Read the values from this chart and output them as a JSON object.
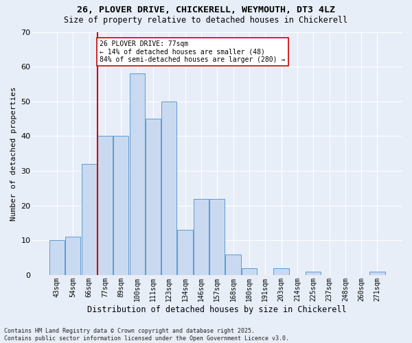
{
  "title1": "26, PLOVER DRIVE, CHICKERELL, WEYMOUTH, DT3 4LZ",
  "title2": "Size of property relative to detached houses in Chickerell",
  "xlabel": "Distribution of detached houses by size in Chickerell",
  "ylabel": "Number of detached properties",
  "categories": [
    "43sqm",
    "54sqm",
    "66sqm",
    "77sqm",
    "89sqm",
    "100sqm",
    "111sqm",
    "123sqm",
    "134sqm",
    "146sqm",
    "157sqm",
    "168sqm",
    "180sqm",
    "191sqm",
    "203sqm",
    "214sqm",
    "225sqm",
    "237sqm",
    "248sqm",
    "260sqm",
    "271sqm"
  ],
  "values": [
    10,
    11,
    32,
    40,
    40,
    58,
    45,
    50,
    13,
    22,
    22,
    6,
    2,
    0,
    2,
    0,
    1,
    0,
    0,
    0,
    1
  ],
  "bar_color": "#c9d9f0",
  "bar_edge_color": "#5b9bd5",
  "vline_x_index": 3,
  "vline_color": "#cc0000",
  "annotation_text": "26 PLOVER DRIVE: 77sqm\n← 14% of detached houses are smaller (48)\n84% of semi-detached houses are larger (280) →",
  "annotation_box_color": "#ffffff",
  "annotation_box_edge": "#cc0000",
  "bg_color": "#e8eef8",
  "plot_bg": "#e8eef8",
  "grid_color": "#ffffff",
  "footer1": "Contains HM Land Registry data © Crown copyright and database right 2025.",
  "footer2": "Contains public sector information licensed under the Open Government Licence v3.0.",
  "ylim": [
    0,
    70
  ],
  "yticks": [
    0,
    10,
    20,
    30,
    40,
    50,
    60,
    70
  ]
}
